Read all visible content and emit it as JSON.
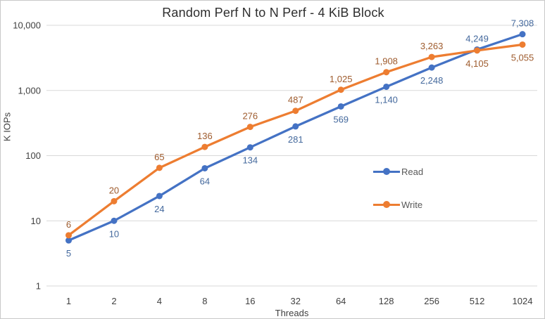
{
  "title": "Random Perf N to N Perf - 4 KiB Block",
  "chart_data": {
    "type": "line",
    "x_axis": {
      "label": "Threads",
      "categories": [
        "1",
        "2",
        "4",
        "8",
        "16",
        "32",
        "64",
        "128",
        "256",
        "512",
        "1024"
      ]
    },
    "y_axis": {
      "label": "K IOPs",
      "scale": "log",
      "range": [
        1,
        10000
      ],
      "ticks": [
        1,
        10,
        100,
        1000,
        10000
      ],
      "tick_labels": [
        "1",
        "10",
        "100",
        "1,000",
        "10,000"
      ]
    },
    "grid": "horizontal-major-only",
    "legend_position": "middle-right",
    "series": [
      {
        "name": "Read",
        "color": "#4472C4",
        "label_color": "#44699D",
        "values": [
          5,
          10,
          24,
          64,
          134,
          281,
          569,
          1140,
          2248,
          4249,
          7308
        ],
        "labels": [
          "5",
          "10",
          "24",
          "64",
          "134",
          "281",
          "569",
          "1,140",
          "2,248",
          "4,249",
          "7,308"
        ],
        "label_side": [
          "below",
          "below",
          "below",
          "below",
          "below",
          "below",
          "below",
          "below",
          "below",
          "above",
          "above"
        ]
      },
      {
        "name": "Write",
        "color": "#ED7D31",
        "label_color": "#9E5B2D",
        "values": [
          6,
          20,
          65,
          136,
          276,
          487,
          1025,
          1908,
          3263,
          4105,
          5055
        ],
        "labels": [
          "6",
          "20",
          "65",
          "136",
          "276",
          "487",
          "1,025",
          "1,908",
          "3,263",
          "4,105",
          "5,055"
        ],
        "label_side": [
          "above",
          "above",
          "above",
          "above",
          "above",
          "above",
          "above",
          "above",
          "above",
          "below",
          "below"
        ]
      }
    ],
    "colors": {
      "gridline": "#D9D9D9",
      "tick_text": "#404040",
      "legend_text": "#595959",
      "border": "#C9C9C9",
      "background": "#FFFFFF"
    }
  }
}
